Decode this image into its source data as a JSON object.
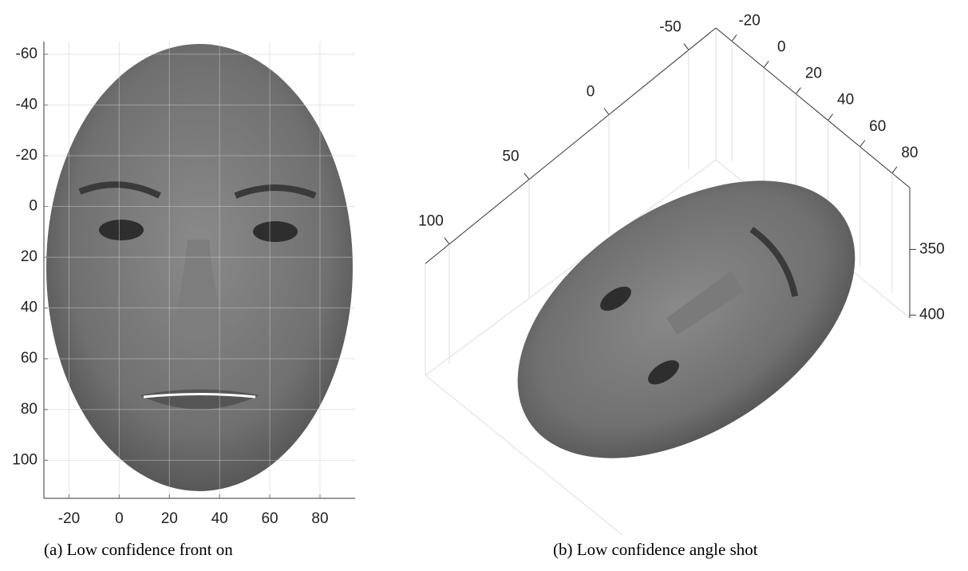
{
  "chart_data": [
    {
      "type": "image",
      "caption": "(a) Low confidence front on",
      "xlim": [
        -30,
        94
      ],
      "xticks": [
        -20,
        0,
        20,
        40,
        60,
        80
      ],
      "ylim": [
        -65,
        115
      ],
      "yticks": [
        -60,
        -40,
        -20,
        0,
        20,
        40,
        60,
        80,
        100
      ],
      "y_reversed": true,
      "grid": true
    },
    {
      "type": "surface3d",
      "caption": "(b) Low confidence angle shot",
      "xlim": [
        -67,
        115
      ],
      "xticks": [
        -50,
        0,
        50,
        100
      ],
      "ylim": [
        -30,
        91
      ],
      "yticks": [
        -20,
        0,
        20,
        40,
        60,
        80
      ],
      "zlim": [
        303,
        402
      ],
      "zticks": [
        350,
        400
      ],
      "grid": true
    }
  ]
}
